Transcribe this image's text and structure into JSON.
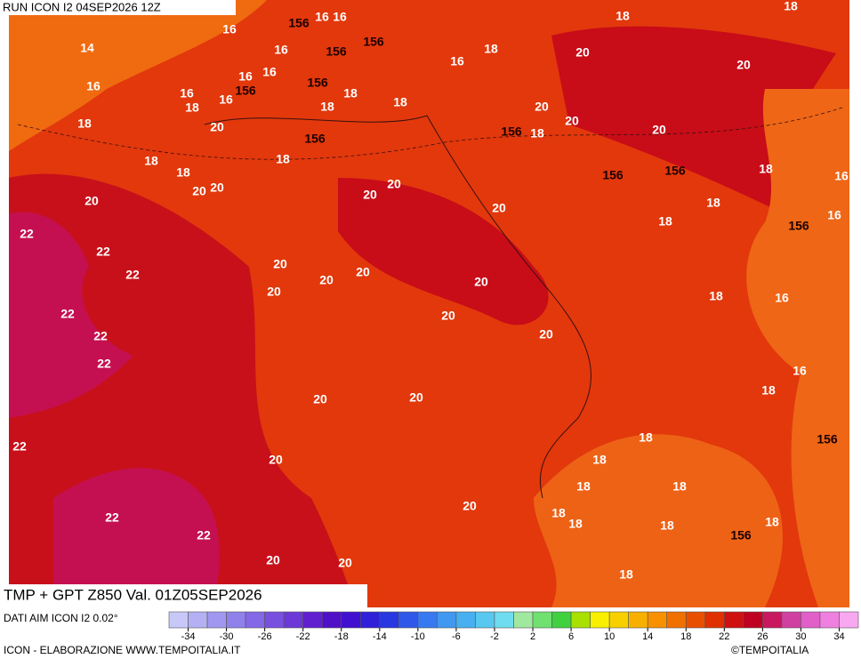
{
  "header": {
    "run": "RUN ICON I2 04SEP2026 12Z"
  },
  "map": {
    "title": "TMP + GPT Z850 Val. 01Z05SEP2026",
    "contour_labels": [
      "14",
      "16",
      "16",
      "16",
      "16",
      "156",
      "156",
      "156",
      "16",
      "18",
      "18",
      "18",
      "20",
      "20",
      "16",
      "16",
      "18",
      "16",
      "16",
      "16",
      "156",
      "156",
      "18",
      "18",
      "18",
      "20",
      "18",
      "20",
      "20",
      "20",
      "156",
      "18",
      "156",
      "18",
      "18",
      "18",
      "20",
      "20",
      "20",
      "20",
      "20",
      "20",
      "18",
      "16",
      "156",
      "156",
      "18",
      "16",
      "156",
      "18",
      "22",
      "22",
      "22",
      "20",
      "20",
      "20",
      "20",
      "20",
      "22",
      "18",
      "16",
      "20",
      "20",
      "22",
      "22",
      "16",
      "18",
      "20",
      "20",
      "22",
      "20",
      "18",
      "156",
      "18",
      "18",
      "18",
      "20",
      "18",
      "18",
      "22",
      "22",
      "18",
      "18",
      "156",
      "20",
      "20",
      "18"
    ]
  },
  "footer": {
    "source": "DATI AIM ICON I2 0.02°",
    "credit": "ICON - ELABORAZIONE WWW.TEMPOITALIA.IT",
    "brand": "©TEMPOITALIA"
  },
  "colorbar": {
    "range": [
      -36,
      36
    ],
    "ticks": [
      -34,
      -30,
      -26,
      -22,
      -18,
      -14,
      -10,
      -6,
      -2,
      2,
      6,
      10,
      14,
      18,
      22,
      26,
      30,
      34
    ],
    "colors": [
      "#c8c8f8",
      "#b4b0f4",
      "#a098f0",
      "#9080ec",
      "#8468e8",
      "#7850e0",
      "#6c38d8",
      "#6020d0",
      "#5010c8",
      "#4010d0",
      "#3020d8",
      "#2838e0",
      "#3058e8",
      "#3878f0",
      "#4098f0",
      "#48b0f0",
      "#58c8f0",
      "#70dcf0",
      "#a0e8a0",
      "#70e070",
      "#40d040",
      "#a8e000",
      "#f8f000",
      "#f8d000",
      "#f8b000",
      "#f89000",
      "#f07000",
      "#e85000",
      "#e03000",
      "#d01010",
      "#c00020",
      "#c81860",
      "#d040a0",
      "#e060c8",
      "#f080e0",
      "#f8a8f0"
    ]
  }
}
